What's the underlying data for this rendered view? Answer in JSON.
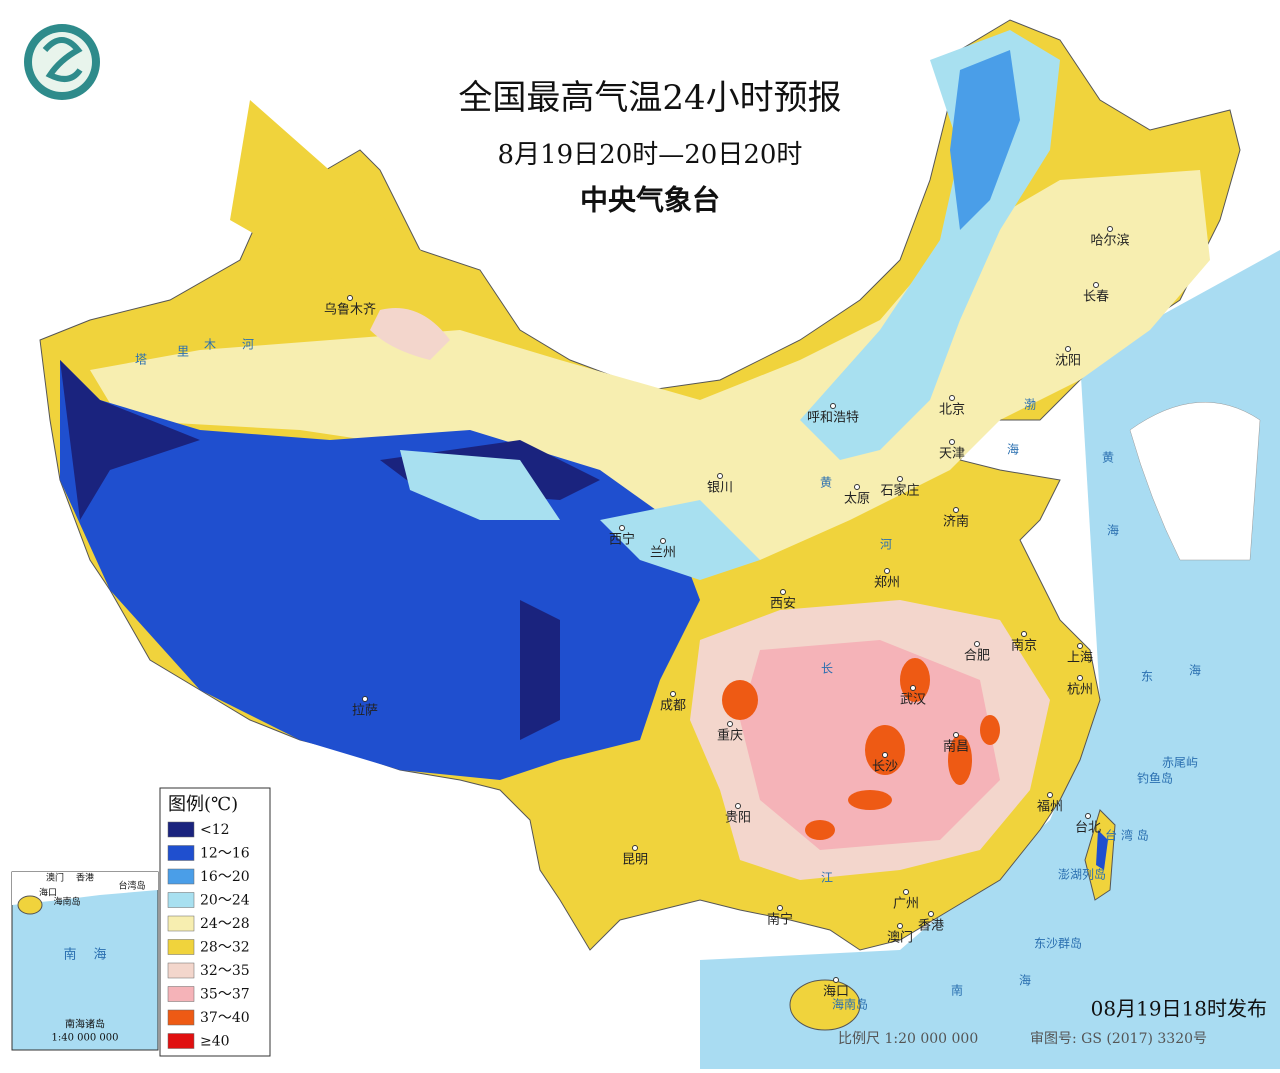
{
  "header": {
    "title": "全国最高气温24小时预报",
    "subtitle": "8月19日20时—20日20时",
    "issuer": "中央气象台"
  },
  "legend": {
    "title": "图例(℃)",
    "items": [
      {
        "label": "<12",
        "color": "#1a237e"
      },
      {
        "label": "12～16",
        "color": "#1f4fcf"
      },
      {
        "label": "16～20",
        "color": "#4a9ee8"
      },
      {
        "label": "20～24",
        "color": "#a8e0f0"
      },
      {
        "label": "24～28",
        "color": "#f7eeb0"
      },
      {
        "label": "28～32",
        "color": "#f0d33c"
      },
      {
        "label": "32～35",
        "color": "#f3d6cc"
      },
      {
        "label": "35～37",
        "color": "#f5b3b8"
      },
      {
        "label": "37～40",
        "color": "#ee5a14"
      },
      {
        "label": "≥40",
        "color": "#e01010"
      }
    ]
  },
  "cities": [
    "乌鲁木齐",
    "呼和浩特",
    "北京",
    "哈尔滨",
    "长春",
    "沈阳",
    "天津",
    "银川",
    "太原",
    "石家庄",
    "济南",
    "西宁",
    "兰州",
    "郑州",
    "西安",
    "南京",
    "合肥",
    "上海",
    "成都",
    "武汉",
    "杭州",
    "重庆",
    "南昌",
    "长沙",
    "拉萨",
    "贵阳",
    "福州",
    "台北",
    "昆明",
    "广州",
    "南宁",
    "香港",
    "澳门",
    "海口"
  ],
  "places": [
    "渤",
    "海",
    "黄",
    "海",
    "东",
    "海",
    "南",
    "海",
    "钓鱼岛",
    "赤尾屿",
    "澎湖列岛",
    "东沙群岛",
    "海南岛",
    "台 湾 岛",
    "塔",
    "里",
    "木",
    "河",
    "黄",
    "河",
    "长",
    "江"
  ],
  "inset": {
    "labels": [
      "澳门",
      "香港",
      "海口",
      "海南岛",
      "台湾岛",
      "南",
      "海",
      "南海诸岛",
      "1:40 000 000"
    ]
  },
  "footer": {
    "issued": "08月19日18时发布",
    "scale": "比例尺 1:20 000 000",
    "approval": "审图号: GS (2017) 3320号"
  }
}
